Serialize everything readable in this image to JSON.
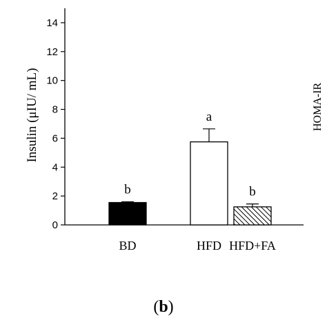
{
  "panel_label": "b",
  "neighbor_axis_label_fragment": "HOMA-IR",
  "chart_data": {
    "type": "bar",
    "ylabel": "Insulin (μIU/ mL)",
    "xlabel": "",
    "ylim": [
      0,
      15
    ],
    "yticks": [
      0,
      2,
      4,
      6,
      8,
      10,
      12,
      14
    ],
    "categories": [
      "BD",
      "HFD",
      "HFD+FA"
    ],
    "values": [
      1.55,
      5.75,
      1.25
    ],
    "errors": [
      0.05,
      0.9,
      0.2
    ],
    "significance_letters": [
      "b",
      "a",
      "b"
    ],
    "fills": [
      "solid-black",
      "white",
      "diagonal-hatch"
    ],
    "grid": false
  }
}
